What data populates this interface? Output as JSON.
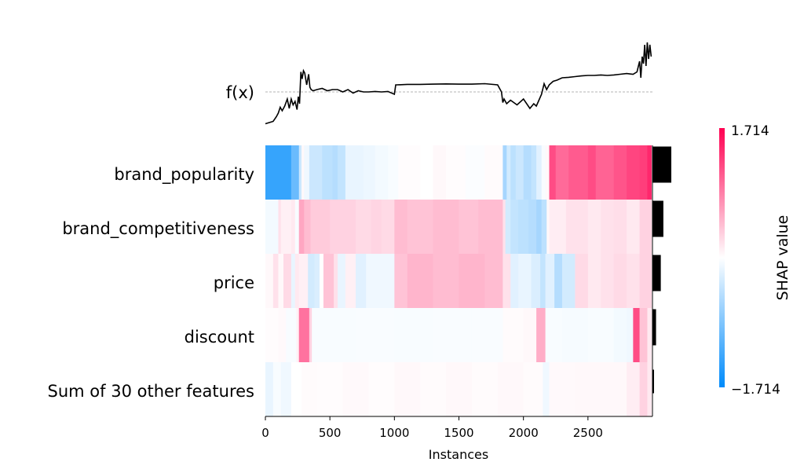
{
  "chart_data": {
    "type": "heatmap",
    "fx_label": "f(x)",
    "xlabel": "Instances",
    "xlim": [
      0,
      3000
    ],
    "x_ticks": [
      0,
      500,
      1000,
      1500,
      2000,
      2500
    ],
    "features": [
      "brand_popularity",
      "brand_competitiveness",
      "price",
      "discount",
      "Sum of 30 other features"
    ],
    "feature_importance": [
      0.95,
      0.55,
      0.42,
      0.18,
      0.06
    ],
    "colorbar": {
      "title": "SHAP value",
      "max_label": "1.714",
      "min_label": "−1.714",
      "vmin": -1.714,
      "vmax": 1.714,
      "low_color": "#008bfb",
      "mid_color": "#ffffff",
      "high_color": "#ff0051"
    },
    "fx_series": {
      "x": [
        0,
        30,
        60,
        85,
        100,
        115,
        130,
        150,
        170,
        185,
        200,
        215,
        230,
        245,
        255,
        265,
        275,
        285,
        295,
        305,
        320,
        335,
        345,
        355,
        370,
        400,
        440,
        480,
        520,
        560,
        600,
        640,
        680,
        720,
        760,
        800,
        850,
        900,
        950,
        1000,
        1010,
        1020,
        1100,
        1200,
        1300,
        1400,
        1500,
        1600,
        1700,
        1800,
        1830,
        1840,
        1850,
        1870,
        1900,
        1950,
        2000,
        2050,
        2080,
        2100,
        2120,
        2140,
        2160,
        2180,
        2200,
        2230,
        2260,
        2300,
        2350,
        2400,
        2450,
        2500,
        2550,
        2600,
        2650,
        2700,
        2750,
        2800,
        2850,
        2880,
        2900,
        2910,
        2920,
        2930,
        2940,
        2950,
        2960,
        2970,
        2980,
        2990
      ],
      "y": [
        -1.35,
        -1.3,
        -1.25,
        -1.05,
        -0.9,
        -0.65,
        -0.8,
        -0.6,
        -0.3,
        -0.7,
        -0.3,
        -0.55,
        -0.4,
        -0.75,
        -0.2,
        -0.5,
        0.85,
        0.55,
        0.9,
        0.8,
        0.3,
        0.75,
        0.2,
        0.1,
        0.05,
        0.1,
        0.15,
        0.05,
        0.1,
        0.1,
        0.0,
        0.1,
        -0.05,
        0.05,
        0.0,
        0.0,
        0.02,
        0.0,
        0.02,
        -0.1,
        0.3,
        0.3,
        0.32,
        0.32,
        0.33,
        0.34,
        0.33,
        0.33,
        0.35,
        0.3,
        0.0,
        -0.45,
        -0.3,
        -0.5,
        -0.35,
        -0.55,
        -0.3,
        -0.7,
        -0.5,
        -0.6,
        -0.35,
        -0.1,
        0.35,
        0.1,
        0.3,
        0.45,
        0.5,
        0.6,
        0.62,
        0.65,
        0.68,
        0.7,
        0.7,
        0.72,
        0.7,
        0.72,
        0.75,
        0.78,
        0.75,
        0.85,
        1.3,
        0.6,
        1.5,
        1.2,
        2.0,
        1.1,
        2.1,
        1.4,
        2.0,
        1.5
      ],
      "baseline": 0.0
    },
    "bands": [
      [
        [
          0,
          200,
          -1.35
        ],
        [
          200,
          260,
          -1.0
        ],
        [
          260,
          280,
          -0.35
        ],
        [
          280,
          300,
          0.05
        ],
        [
          300,
          340,
          -0.1
        ],
        [
          340,
          440,
          -0.35
        ],
        [
          440,
          520,
          -0.45
        ],
        [
          520,
          560,
          -0.5
        ],
        [
          560,
          620,
          -0.4
        ],
        [
          620,
          760,
          -0.15
        ],
        [
          760,
          850,
          -0.12
        ],
        [
          850,
          950,
          -0.08
        ],
        [
          950,
          1030,
          -0.05
        ],
        [
          1030,
          1200,
          0.02
        ],
        [
          1200,
          1300,
          0.0
        ],
        [
          1300,
          1400,
          0.05
        ],
        [
          1400,
          1550,
          0.02
        ],
        [
          1550,
          1700,
          -0.03
        ],
        [
          1700,
          1840,
          0.03
        ],
        [
          1840,
          1870,
          -0.6
        ],
        [
          1870,
          1900,
          -0.3
        ],
        [
          1900,
          1940,
          -0.45
        ],
        [
          1940,
          2000,
          -0.35
        ],
        [
          2000,
          2060,
          -0.5
        ],
        [
          2060,
          2100,
          -0.4
        ],
        [
          2100,
          2140,
          -0.2
        ],
        [
          2140,
          2170,
          -0.05
        ],
        [
          2170,
          2200,
          0.05
        ],
        [
          2200,
          2250,
          1.2
        ],
        [
          2250,
          2350,
          1.0
        ],
        [
          2350,
          2500,
          1.1
        ],
        [
          2500,
          2560,
          1.2
        ],
        [
          2560,
          2700,
          1.05
        ],
        [
          2700,
          2800,
          1.15
        ],
        [
          2800,
          2900,
          1.25
        ],
        [
          2900,
          2960,
          1.3
        ],
        [
          2960,
          2990,
          1.45
        ]
      ],
      [
        [
          0,
          100,
          -0.08
        ],
        [
          100,
          120,
          0.2
        ],
        [
          120,
          200,
          0.1
        ],
        [
          200,
          230,
          0.15
        ],
        [
          230,
          260,
          -0.05
        ],
        [
          260,
          300,
          0.6
        ],
        [
          300,
          350,
          0.45
        ],
        [
          350,
          500,
          0.35
        ],
        [
          500,
          700,
          0.3
        ],
        [
          700,
          820,
          0.25
        ],
        [
          820,
          900,
          0.28
        ],
        [
          900,
          1000,
          0.25
        ],
        [
          1000,
          1100,
          0.45
        ],
        [
          1100,
          1300,
          0.4
        ],
        [
          1300,
          1500,
          0.45
        ],
        [
          1500,
          1650,
          0.4
        ],
        [
          1650,
          1840,
          0.45
        ],
        [
          1840,
          1860,
          0.2
        ],
        [
          1860,
          1900,
          -0.3
        ],
        [
          1900,
          1960,
          -0.4
        ],
        [
          1960,
          2040,
          -0.45
        ],
        [
          2040,
          2100,
          -0.5
        ],
        [
          2100,
          2140,
          -0.6
        ],
        [
          2140,
          2180,
          -0.45
        ],
        [
          2180,
          2200,
          0.05
        ],
        [
          2200,
          2330,
          0.12
        ],
        [
          2330,
          2500,
          0.2
        ],
        [
          2500,
          2600,
          0.15
        ],
        [
          2600,
          2700,
          0.2
        ],
        [
          2700,
          2800,
          0.22
        ],
        [
          2800,
          2900,
          0.15
        ],
        [
          2900,
          2990,
          0.3
        ]
      ],
      [
        [
          0,
          60,
          0.05
        ],
        [
          60,
          100,
          0.2
        ],
        [
          100,
          140,
          0.05
        ],
        [
          140,
          200,
          0.25
        ],
        [
          200,
          230,
          -0.15
        ],
        [
          230,
          260,
          0.15
        ],
        [
          260,
          330,
          0.1
        ],
        [
          330,
          380,
          -0.3
        ],
        [
          380,
          420,
          -0.25
        ],
        [
          420,
          450,
          0.0
        ],
        [
          450,
          530,
          0.4
        ],
        [
          530,
          560,
          0.2
        ],
        [
          560,
          620,
          -0.15
        ],
        [
          620,
          700,
          0.1
        ],
        [
          700,
          780,
          -0.2
        ],
        [
          780,
          850,
          -0.1
        ],
        [
          850,
          1000,
          -0.1
        ],
        [
          1000,
          1100,
          0.4
        ],
        [
          1100,
          1300,
          0.5
        ],
        [
          1300,
          1500,
          0.45
        ],
        [
          1500,
          1700,
          0.5
        ],
        [
          1700,
          1840,
          0.45
        ],
        [
          1840,
          1900,
          0.2
        ],
        [
          1900,
          1960,
          -0.2
        ],
        [
          1960,
          2060,
          -0.15
        ],
        [
          2060,
          2130,
          -0.25
        ],
        [
          2130,
          2170,
          -0.4
        ],
        [
          2170,
          2240,
          -0.2
        ],
        [
          2240,
          2300,
          -0.5
        ],
        [
          2300,
          2400,
          -0.3
        ],
        [
          2400,
          2500,
          0.25
        ],
        [
          2500,
          2600,
          0.15
        ],
        [
          2600,
          2700,
          0.2
        ],
        [
          2700,
          2800,
          0.25
        ],
        [
          2800,
          2900,
          0.2
        ],
        [
          2900,
          2990,
          0.3
        ]
      ],
      [
        [
          0,
          100,
          0.02
        ],
        [
          100,
          160,
          0.04
        ],
        [
          160,
          240,
          -0.05
        ],
        [
          240,
          260,
          0.1
        ],
        [
          260,
          340,
          0.95
        ],
        [
          340,
          360,
          0.3
        ],
        [
          360,
          700,
          -0.05
        ],
        [
          700,
          1000,
          -0.04
        ],
        [
          1000,
          1300,
          -0.05
        ],
        [
          1300,
          1600,
          -0.04
        ],
        [
          1600,
          1840,
          -0.04
        ],
        [
          1840,
          2000,
          0.03
        ],
        [
          2000,
          2100,
          0.05
        ],
        [
          2100,
          2170,
          0.55
        ],
        [
          2170,
          2300,
          -0.05
        ],
        [
          2300,
          2500,
          -0.06
        ],
        [
          2500,
          2700,
          -0.05
        ],
        [
          2700,
          2800,
          -0.08
        ],
        [
          2800,
          2850,
          -0.1
        ],
        [
          2850,
          2900,
          1.2
        ],
        [
          2900,
          2960,
          0.4
        ],
        [
          2960,
          2990,
          0.15
        ]
      ],
      [
        [
          0,
          60,
          -0.15
        ],
        [
          60,
          120,
          -0.05
        ],
        [
          120,
          200,
          -0.1
        ],
        [
          200,
          280,
          0.0
        ],
        [
          280,
          400,
          0.03
        ],
        [
          400,
          600,
          0.02
        ],
        [
          600,
          800,
          0.04
        ],
        [
          800,
          1000,
          0.02
        ],
        [
          1000,
          1200,
          0.05
        ],
        [
          1200,
          1400,
          0.03
        ],
        [
          1400,
          1600,
          0.05
        ],
        [
          1600,
          1800,
          0.03
        ],
        [
          1800,
          2000,
          0.05
        ],
        [
          2000,
          2150,
          0.03
        ],
        [
          2150,
          2200,
          -0.1
        ],
        [
          2200,
          2400,
          0.04
        ],
        [
          2400,
          2600,
          0.05
        ],
        [
          2600,
          2800,
          0.05
        ],
        [
          2800,
          2900,
          0.12
        ],
        [
          2900,
          2960,
          0.3
        ],
        [
          2960,
          2990,
          0.15
        ]
      ]
    ]
  }
}
